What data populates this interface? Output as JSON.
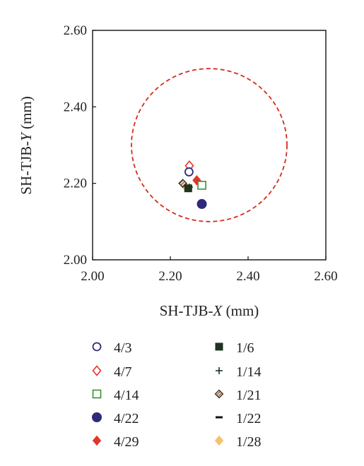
{
  "chart_data": {
    "type": "scatter",
    "title": "",
    "xlabel": {
      "prefix": "SH-TJB-",
      "italic": "X",
      "suffix": " (mm)"
    },
    "ylabel": {
      "prefix": "SH-TJB-",
      "italic": "Y",
      "suffix": " (mm)"
    },
    "xlim": [
      2.0,
      2.6
    ],
    "ylim": [
      2.0,
      2.6
    ],
    "xticks": [
      "2.00",
      "2.20",
      "2.40",
      "2.60"
    ],
    "yticks": [
      "2.00",
      "2.20",
      "2.40",
      "2.60"
    ],
    "grid": false,
    "legend_position": "bottom",
    "reference_circle": {
      "center": [
        2.3,
        2.3
      ],
      "radius": 0.2,
      "color": "#d62b1e",
      "style": "dashed"
    },
    "series": [
      {
        "name": "4/3",
        "marker": "open-circle",
        "color": "#2e2a7a",
        "x": 2.248,
        "y": 2.23
      },
      {
        "name": "4/7",
        "marker": "open-diamond",
        "color": "#e2352b",
        "x": 2.249,
        "y": 2.246
      },
      {
        "name": "4/14",
        "marker": "open-square",
        "color": "#3a8f3a",
        "x": 2.281,
        "y": 2.195
      },
      {
        "name": "4/22",
        "marker": "filled-circle",
        "color": "#2e2a7a",
        "x": 2.281,
        "y": 2.146
      },
      {
        "name": "4/29",
        "marker": "filled-diamond",
        "color": "#e2352b",
        "x": 2.268,
        "y": 2.208
      },
      {
        "name": "1/6",
        "marker": "filled-square",
        "color": "#1e3320",
        "x": 2.246,
        "y": 2.187
      },
      {
        "name": "1/14",
        "marker": "plus",
        "color": "#1e3320",
        "x": 2.249,
        "y": 2.19
      },
      {
        "name": "1/21",
        "marker": "hatched-diamond",
        "color": "#3a2a1a",
        "x": 2.232,
        "y": 2.2
      },
      {
        "name": "1/22",
        "marker": "dash",
        "color": "#111111",
        "x": 2.247,
        "y": 2.192
      },
      {
        "name": "1/28",
        "marker": "filled-diamond",
        "color": "#f7c26b",
        "x": 2.236,
        "y": 2.195
      }
    ]
  }
}
